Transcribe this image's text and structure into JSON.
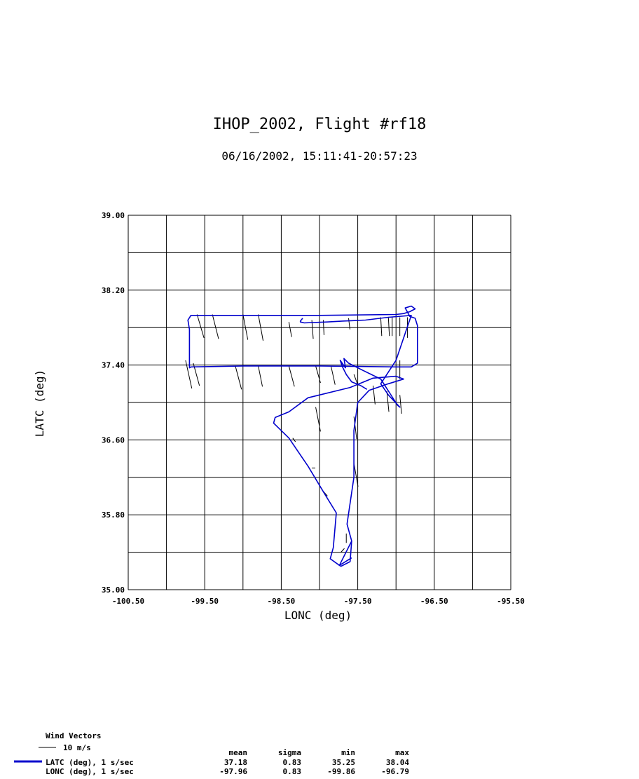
{
  "chart_data": {
    "type": "line",
    "title": "IHOP_2002, Flight #rf18",
    "subtitle": "06/16/2002, 15:11:41-20:57:23",
    "xlabel": "LONC (deg)",
    "ylabel": "LATC (deg)",
    "xlim": [
      -100.5,
      -95.5
    ],
    "ylim": [
      35.0,
      39.0
    ],
    "xticks": [
      "-100.50",
      "-99.50",
      "-98.50",
      "-97.50",
      "-96.50",
      "-95.50"
    ],
    "yticks": [
      "35.00",
      "35.80",
      "36.60",
      "37.40",
      "38.20",
      "39.00"
    ],
    "grid": true,
    "series": [
      {
        "name": "LATC (deg), 1 s/sec",
        "color": "#0000cc",
        "points": [
          [
            -97.58,
            35.52
          ],
          [
            -97.74,
            35.26
          ],
          [
            -97.86,
            35.33
          ],
          [
            -97.82,
            35.45
          ],
          [
            -97.78,
            35.82
          ],
          [
            -97.93,
            36.02
          ],
          [
            -98.15,
            36.32
          ],
          [
            -98.4,
            36.62
          ],
          [
            -98.6,
            36.78
          ],
          [
            -98.58,
            36.84
          ],
          [
            -98.4,
            36.9
          ],
          [
            -98.15,
            37.05
          ],
          [
            -97.6,
            37.16
          ],
          [
            -97.3,
            37.26
          ],
          [
            -97.0,
            37.28
          ],
          [
            -96.9,
            37.25
          ],
          [
            -97.1,
            37.2
          ],
          [
            -97.35,
            37.13
          ],
          [
            -97.5,
            37.0
          ],
          [
            -97.55,
            36.7
          ],
          [
            -97.55,
            36.2
          ],
          [
            -97.64,
            35.7
          ],
          [
            -97.58,
            35.52
          ],
          [
            -97.6,
            35.3
          ],
          [
            -97.72,
            35.25
          ],
          [
            -97.74,
            35.26
          ],
          [
            -97.58,
            35.34
          ]
        ]
      },
      {
        "name": "flight-track-boxes",
        "color": "#0000cc",
        "points": [
          [
            -97.0,
            37.38
          ],
          [
            -98.0,
            37.39
          ],
          [
            -99.0,
            37.39
          ],
          [
            -99.68,
            37.38
          ],
          [
            -99.7,
            37.37
          ],
          [
            -99.7,
            37.78
          ],
          [
            -99.72,
            37.88
          ],
          [
            -99.68,
            37.93
          ],
          [
            -99.0,
            37.93
          ],
          [
            -98.0,
            37.93
          ],
          [
            -97.0,
            37.94
          ],
          [
            -96.9,
            37.95
          ],
          [
            -96.82,
            37.97
          ],
          [
            -96.75,
            38.0
          ],
          [
            -96.8,
            38.03
          ],
          [
            -96.88,
            38.01
          ],
          [
            -96.82,
            37.92
          ],
          [
            -96.75,
            37.9
          ],
          [
            -96.72,
            37.82
          ],
          [
            -96.72,
            37.42
          ],
          [
            -96.8,
            37.38
          ],
          [
            -97.0,
            37.38
          ]
        ]
      },
      {
        "name": "LONC (deg), 1 s/sec",
        "color": "#0000cc",
        "points": [
          [
            -98.22,
            37.9
          ],
          [
            -98.25,
            37.87
          ],
          [
            -98.25,
            37.86
          ],
          [
            -98.2,
            37.85
          ],
          [
            -97.9,
            37.86
          ],
          [
            -97.7,
            37.87
          ],
          [
            -97.4,
            37.88
          ],
          [
            -97.1,
            37.91
          ],
          [
            -96.8,
            37.93
          ],
          [
            -97.0,
            37.45
          ],
          [
            -97.2,
            37.2
          ],
          [
            -97.1,
            37.08
          ],
          [
            -96.95,
            36.95
          ],
          [
            -96.98,
            36.97
          ],
          [
            -97.2,
            37.25
          ],
          [
            -97.45,
            37.35
          ],
          [
            -97.62,
            37.42
          ],
          [
            -97.68,
            37.47
          ],
          [
            -97.66,
            37.37
          ],
          [
            -97.73,
            37.45
          ],
          [
            -97.7,
            37.38
          ],
          [
            -97.65,
            37.3
          ],
          [
            -97.58,
            37.22
          ],
          [
            -97.46,
            37.18
          ],
          [
            -97.38,
            37.14
          ]
        ]
      }
    ],
    "wind_vectors_legend": {
      "title": "Wind Vectors",
      "scale_label": "10 m/s"
    },
    "stats": {
      "headers": [
        "mean",
        "sigma",
        "min",
        "max"
      ],
      "rows": [
        {
          "label": "LATC (deg), 1 s/sec",
          "color": "#0000cc",
          "values": [
            "37.18",
            "0.83",
            "35.25",
            "38.04"
          ]
        },
        {
          "label": "LONC (deg), 1 s/sec",
          "color": "",
          "values": [
            "-97.96",
            "0.83",
            "-99.86",
            "-96.79"
          ]
        }
      ]
    },
    "wind_barbs": [
      [
        -99.6,
        37.94,
        -0.2,
        -0.25
      ],
      [
        -99.4,
        37.94,
        -0.18,
        -0.26
      ],
      [
        -99.0,
        37.94,
        -0.14,
        -0.27
      ],
      [
        -98.8,
        37.94,
        -0.14,
        -0.28
      ],
      [
        -98.4,
        37.86,
        -0.08,
        -0.16
      ],
      [
        -98.1,
        37.88,
        -0.04,
        -0.2
      ],
      [
        -97.95,
        37.88,
        -0.02,
        -0.16
      ],
      [
        -97.62,
        37.9,
        -0.04,
        -0.12
      ],
      [
        -97.2,
        37.91,
        -0.03,
        -0.2
      ],
      [
        -97.1,
        37.91,
        -0.03,
        -0.2
      ],
      [
        -97.05,
        37.91,
        0.0,
        -0.2
      ],
      [
        -96.95,
        37.91,
        0.0,
        -0.2
      ],
      [
        -96.85,
        37.91,
        0.0,
        -0.22
      ],
      [
        -99.75,
        37.45,
        -0.18,
        -0.3
      ],
      [
        -99.65,
        37.42,
        -0.18,
        -0.24
      ],
      [
        -99.1,
        37.39,
        -0.18,
        -0.25
      ],
      [
        -98.8,
        37.39,
        -0.12,
        -0.22
      ],
      [
        -98.4,
        37.39,
        -0.16,
        -0.22
      ],
      [
        -98.05,
        37.39,
        -0.14,
        -0.18
      ],
      [
        -97.85,
        37.39,
        -0.12,
        -0.2
      ],
      [
        -97.55,
        37.3,
        -0.12,
        -0.12
      ],
      [
        -97.3,
        37.18,
        -0.06,
        -0.2
      ],
      [
        -97.12,
        37.12,
        -0.06,
        -0.22
      ],
      [
        -96.95,
        37.08,
        -0.05,
        -0.2
      ],
      [
        -98.05,
        36.95,
        -0.14,
        -0.26
      ],
      [
        -97.55,
        36.85,
        -0.08,
        -0.24
      ],
      [
        -97.55,
        36.35,
        -0.12,
        -0.25
      ],
      [
        -98.35,
        36.62,
        -0.08,
        -0.04
      ],
      [
        -98.1,
        36.3,
        -0.1,
        0.0
      ],
      [
        -97.95,
        36.05,
        -0.12,
        -0.05
      ],
      [
        -97.65,
        35.5,
        0.0,
        0.1
      ],
      [
        -97.72,
        35.4,
        -0.1,
        0.04
      ],
      [
        -96.95,
        37.45,
        0.0,
        -0.2
      ]
    ]
  }
}
